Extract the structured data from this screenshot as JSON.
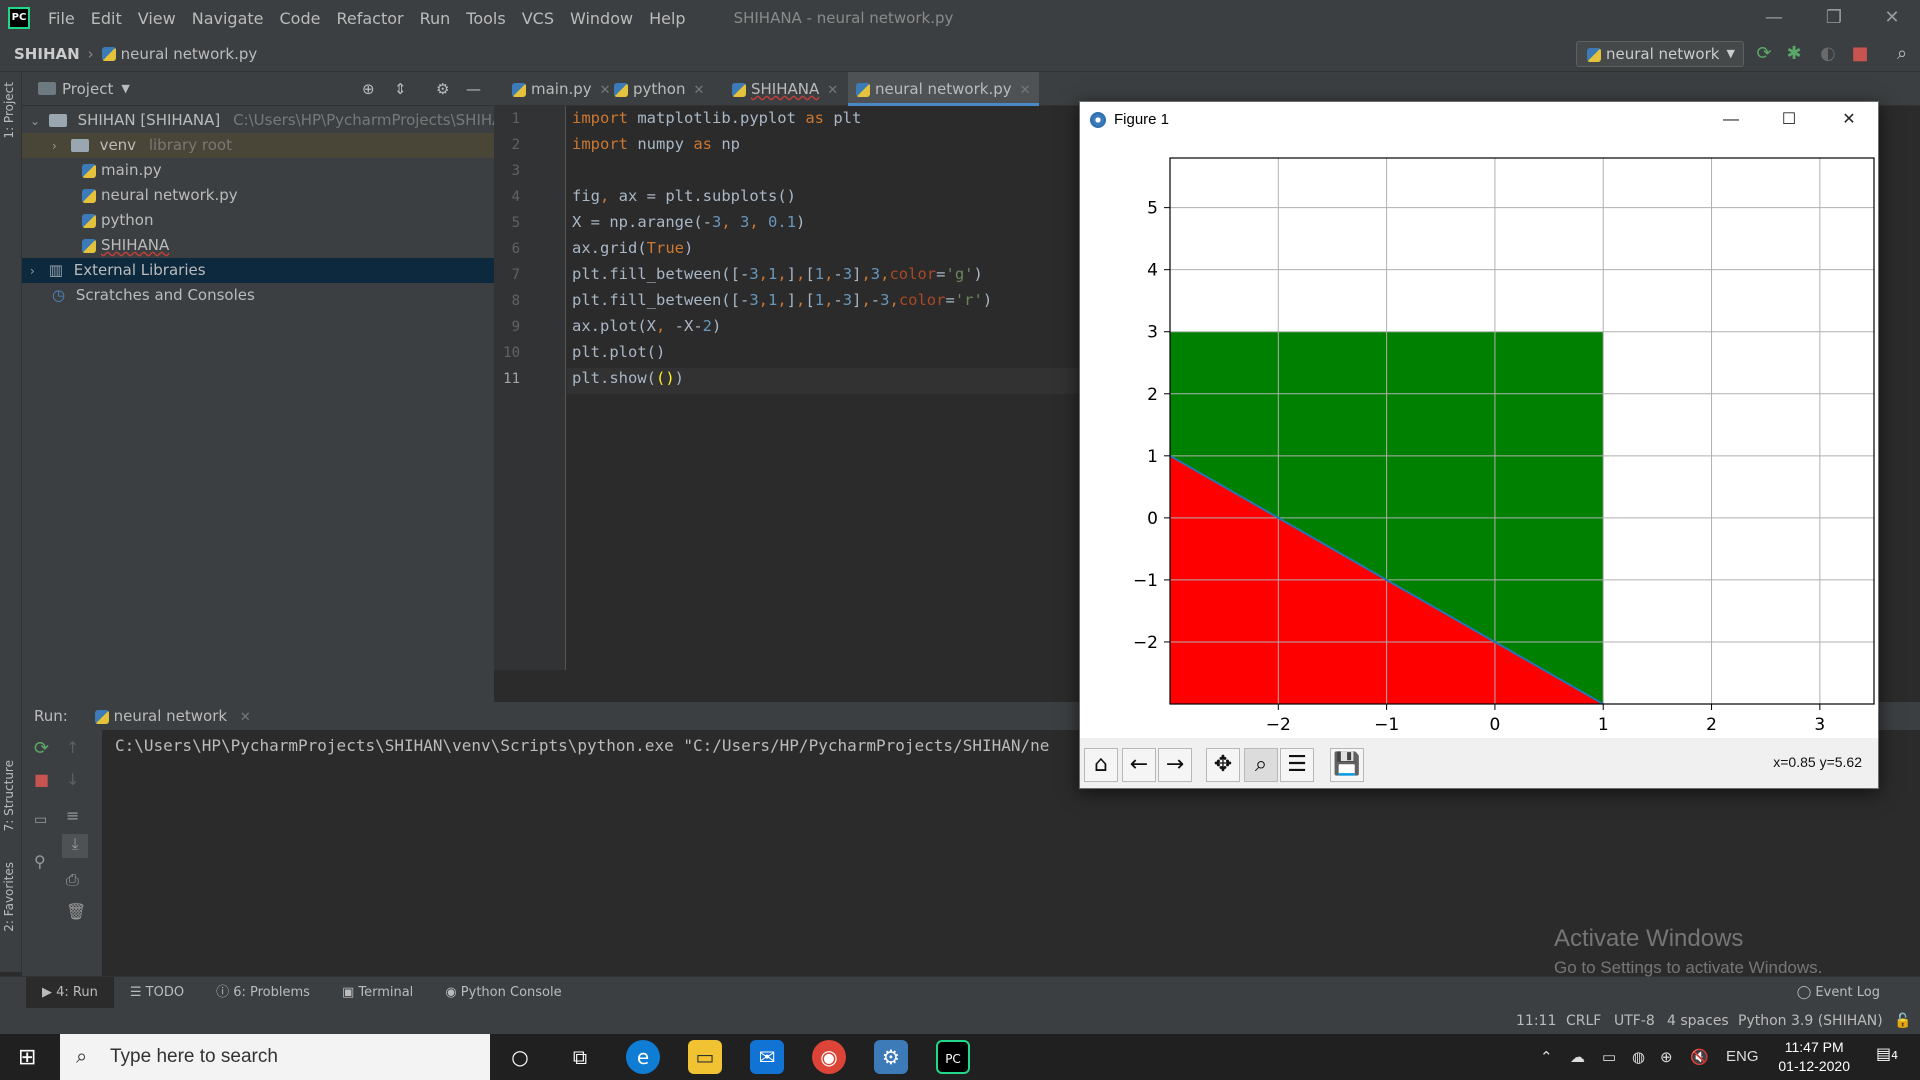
{
  "menubar": {
    "items": [
      "File",
      "Edit",
      "View",
      "Navigate",
      "Code",
      "Refactor",
      "Run",
      "Tools",
      "VCS",
      "Window",
      "Help"
    ],
    "title": "SHIHANA - neural network.py"
  },
  "navbar": {
    "project": "SHIHAN",
    "file": "neural network.py"
  },
  "run_config": "neural network",
  "project_panel": {
    "title": "Project",
    "root": "SHIHAN [SHIHANA]",
    "root_path": "C:\\Users\\HP\\PycharmProjects\\SHIHAN",
    "venv": "venv",
    "venv_hint": "library root",
    "files": [
      "main.py",
      "neural network.py",
      "python",
      "SHIHANA"
    ],
    "external": "External Libraries",
    "scratches": "Scratches and Consoles"
  },
  "left_strip": {
    "project": "1: Project",
    "structure": "7: Structure",
    "favorites": "2: Favorites"
  },
  "tabs": [
    "main.py",
    "python",
    "SHIHANA",
    "neural network.py"
  ],
  "code": {
    "line_numbers": [
      "1",
      "2",
      "3",
      "4",
      "5",
      "6",
      "7",
      "8",
      "9",
      "10",
      "11"
    ]
  },
  "run": {
    "label": "Run:",
    "tab": "neural network",
    "command": "C:\\Users\\HP\\PycharmProjects\\SHIHAN\\venv\\Scripts\\python.exe \"C:/Users/HP/PycharmProjects/SHIHAN/ne"
  },
  "bottom_tabs": [
    "4: Run",
    "TODO",
    "6: Problems",
    "Terminal",
    "Python Console"
  ],
  "event_log": "Event Log",
  "status": {
    "position": "11:11",
    "line_sep": "CRLF",
    "encoding": "UTF-8",
    "indent": "4 spaces",
    "interpreter": "Python 3.9 (SHIHAN)"
  },
  "watermark": {
    "line1": "Activate Windows",
    "line2": "Go to Settings to activate Windows."
  },
  "figure": {
    "title": "Figure 1",
    "coords": "x=0.85 y=5.62"
  },
  "chart_data": {
    "type": "area",
    "xlim": [
      -3,
      3.5
    ],
    "ylim": [
      -3,
      5.8
    ],
    "xticks": [
      -2,
      -1,
      0,
      1,
      2,
      3
    ],
    "yticks": [
      -2,
      -1,
      0,
      1,
      2,
      3,
      4,
      5
    ],
    "xtick_labels": [
      "−2",
      "−1",
      "0",
      "1",
      "2",
      "3"
    ],
    "ytick_labels": [
      "−2",
      "−1",
      "0",
      "1",
      "2",
      "3",
      "4",
      "5"
    ],
    "grid": true,
    "fills": [
      {
        "x": [
          -3,
          1
        ],
        "y1": [
          1,
          -3
        ],
        "y2": 3,
        "color": "#008000"
      },
      {
        "x": [
          -3,
          1
        ],
        "y1": [
          1,
          -3
        ],
        "y2": -3,
        "color": "#ff0000"
      }
    ],
    "line": {
      "x": [
        -3,
        1
      ],
      "y": [
        1,
        -3
      ],
      "color": "#1f77b4"
    }
  },
  "taskbar": {
    "search_placeholder": "Type here to search",
    "lang": "ENG",
    "time": "11:47 PM",
    "date": "01-12-2020",
    "notif_count": "4"
  }
}
